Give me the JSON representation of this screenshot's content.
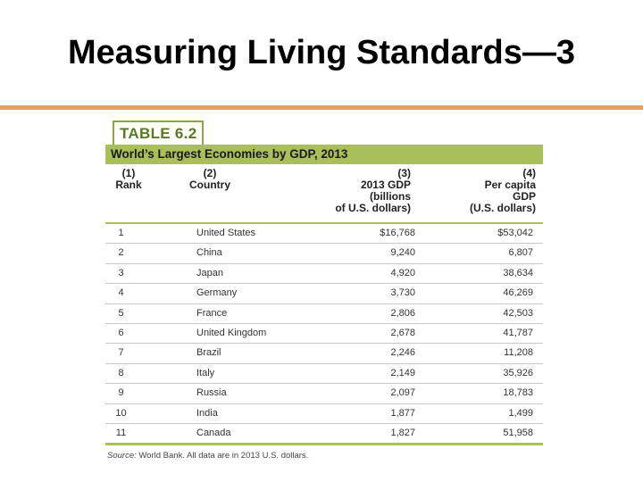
{
  "slide": {
    "title": "Measuring Living Standards—3"
  },
  "table": {
    "label": "TABLE 6.2",
    "caption": "World’s Largest Economies by GDP, 2013",
    "headers": {
      "rank": "(1)\nRank",
      "country": "(2)\nCountry",
      "gdp": "(3)\n2013 GDP\n(billions\nof U.S. dollars)",
      "per_capita": "(4)\nPer capita\nGDP\n(U.S. dollars)"
    },
    "rows": [
      {
        "rank": "1",
        "country": "United States",
        "gdp": "$16,768",
        "per_capita": "$53,042"
      },
      {
        "rank": "2",
        "country": "China",
        "gdp": "9,240",
        "per_capita": "6,807"
      },
      {
        "rank": "3",
        "country": "Japan",
        "gdp": "4,920",
        "per_capita": "38,634"
      },
      {
        "rank": "4",
        "country": "Germany",
        "gdp": "3,730",
        "per_capita": "46,269"
      },
      {
        "rank": "5",
        "country": "France",
        "gdp": "2,806",
        "per_capita": "42,503"
      },
      {
        "rank": "6",
        "country": "United Kingdom",
        "gdp": "2,678",
        "per_capita": "41,787"
      },
      {
        "rank": "7",
        "country": "Brazil",
        "gdp": "2,246",
        "per_capita": "11,208"
      },
      {
        "rank": "8",
        "country": "Italy",
        "gdp": "2,149",
        "per_capita": "35,926"
      },
      {
        "rank": "9",
        "country": "Russia",
        "gdp": "2,097",
        "per_capita": "18,783"
      },
      {
        "rank": "10",
        "country": "India",
        "gdp": "1,877",
        "per_capita": "1,499"
      },
      {
        "rank": "11",
        "country": "Canada",
        "gdp": "1,827",
        "per_capita": "51,958"
      }
    ],
    "source_label": "Source:",
    "source_text": "World Bank. All data are in 2013 U.S. dollars."
  },
  "colors": {
    "accent_rule": "#e8a062",
    "table_green": "#a9bf5a",
    "label_green": "#5a7a1e"
  }
}
